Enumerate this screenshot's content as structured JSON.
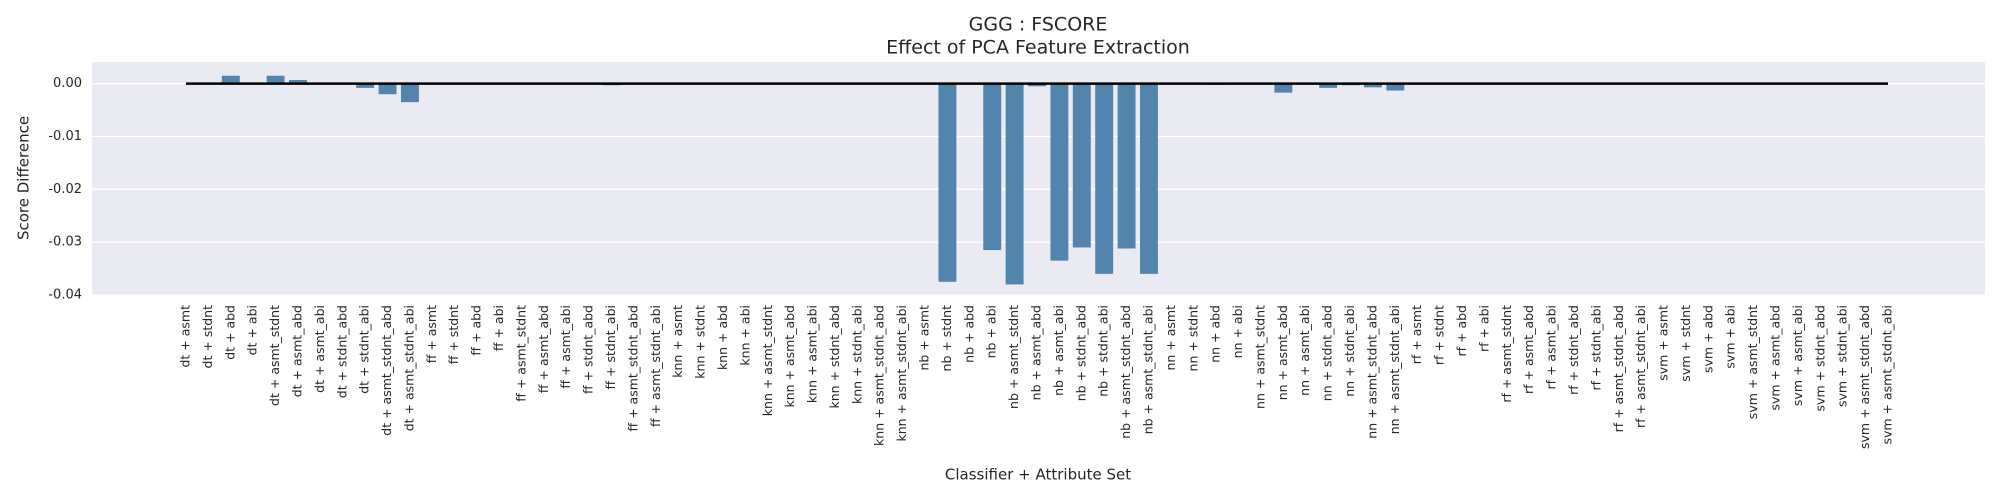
{
  "chart_data": {
    "type": "bar",
    "title": "GGG : FSCORE",
    "subtitle": "Effect of PCA Feature Extraction",
    "x_label": "Classifier + Attribute Set",
    "y_label": "Score Difference",
    "categories": [
      "dt + asmt",
      "dt + stdnt",
      "dt + abd",
      "dt + abi",
      "dt + asmt_stdnt",
      "dt + asmt_abd",
      "dt + asmt_abi",
      "dt + stdnt_abd",
      "dt + stdnt_abi",
      "dt + asmt_stdnt_abd",
      "dt + asmt_stdnt_abi",
      "ff + asmt",
      "ff + stdnt",
      "ff + abd",
      "ff + abi",
      "ff + asmt_stdnt",
      "ff + asmt_abd",
      "ff + asmt_abi",
      "ff + stdnt_abd",
      "ff + stdnt_abi",
      "ff + asmt_stdnt_abd",
      "ff + asmt_stdnt_abi",
      "knn + asmt",
      "knn + stdnt",
      "knn + abd",
      "knn + abi",
      "knn + asmt_stdnt",
      "knn + asmt_abd",
      "knn + asmt_abi",
      "knn + stdnt_abd",
      "knn + stdnt_abi",
      "knn + asmt_stdnt_abd",
      "knn + asmt_stdnt_abi",
      "nb + asmt",
      "nb + stdnt",
      "nb + abd",
      "nb + abi",
      "nb + asmt_stdnt",
      "nb + asmt_abd",
      "nb + asmt_abi",
      "nb + stdnt_abd",
      "nb + stdnt_abi",
      "nb + asmt_stdnt_abd",
      "nb + asmt_stdnt_abi",
      "nn + asmt",
      "nn + stdnt",
      "nn + abd",
      "nn + abi",
      "nn + asmt_stdnt",
      "nn + asmt_abd",
      "nn + asmt_abi",
      "nn + stdnt_abd",
      "nn + stdnt_abi",
      "nn + asmt_stdnt_abd",
      "nn + asmt_stdnt_abi",
      "rf + asmt",
      "rf + stdnt",
      "rf + abd",
      "rf + abi",
      "rf + asmt_stdnt",
      "rf + asmt_abd",
      "rf + asmt_abi",
      "rf + stdnt_abd",
      "rf + stdnt_abi",
      "rf + asmt_stdnt_abd",
      "rf + asmt_stdnt_abi",
      "svm + asmt",
      "svm + stdnt",
      "svm + abd",
      "svm + abi",
      "svm + asmt_stdnt",
      "svm + asmt_abd",
      "svm + asmt_abi",
      "svm + stdnt_abd",
      "svm + stdnt_abi",
      "svm + asmt_stdnt_abd",
      "svm + asmt_stdnt_abi"
    ],
    "values": [
      0,
      0,
      0.0015,
      0,
      0.0015,
      0.0007,
      0,
      0,
      -0.0008,
      -0.002,
      -0.0035,
      0,
      0,
      0,
      0,
      0,
      0,
      0,
      0,
      -0.0003,
      0,
      0,
      0,
      0,
      0,
      0,
      0,
      0,
      0,
      0,
      0,
      0,
      0,
      0,
      -0.0375,
      0,
      -0.0315,
      -0.038,
      -0.0005,
      -0.0335,
      -0.031,
      -0.036,
      -0.0312,
      -0.036,
      0,
      0,
      -0.0002,
      0,
      0,
      -0.0017,
      0,
      -0.0008,
      -0.0003,
      -0.0007,
      -0.0013,
      0,
      0,
      0,
      0,
      0,
      0,
      0,
      0,
      0,
      0,
      0,
      0,
      0,
      0,
      0,
      0,
      0,
      0,
      0,
      0,
      0,
      0
    ],
    "color": "#5284ad",
    "hline": 0,
    "ylim": [
      -0.04,
      0.0041
    ],
    "yticks": [
      {
        "value": 0,
        "label": "0.00"
      },
      -0.01,
      -0.02,
      -0.03,
      -0.04
    ],
    "grid": true
  }
}
